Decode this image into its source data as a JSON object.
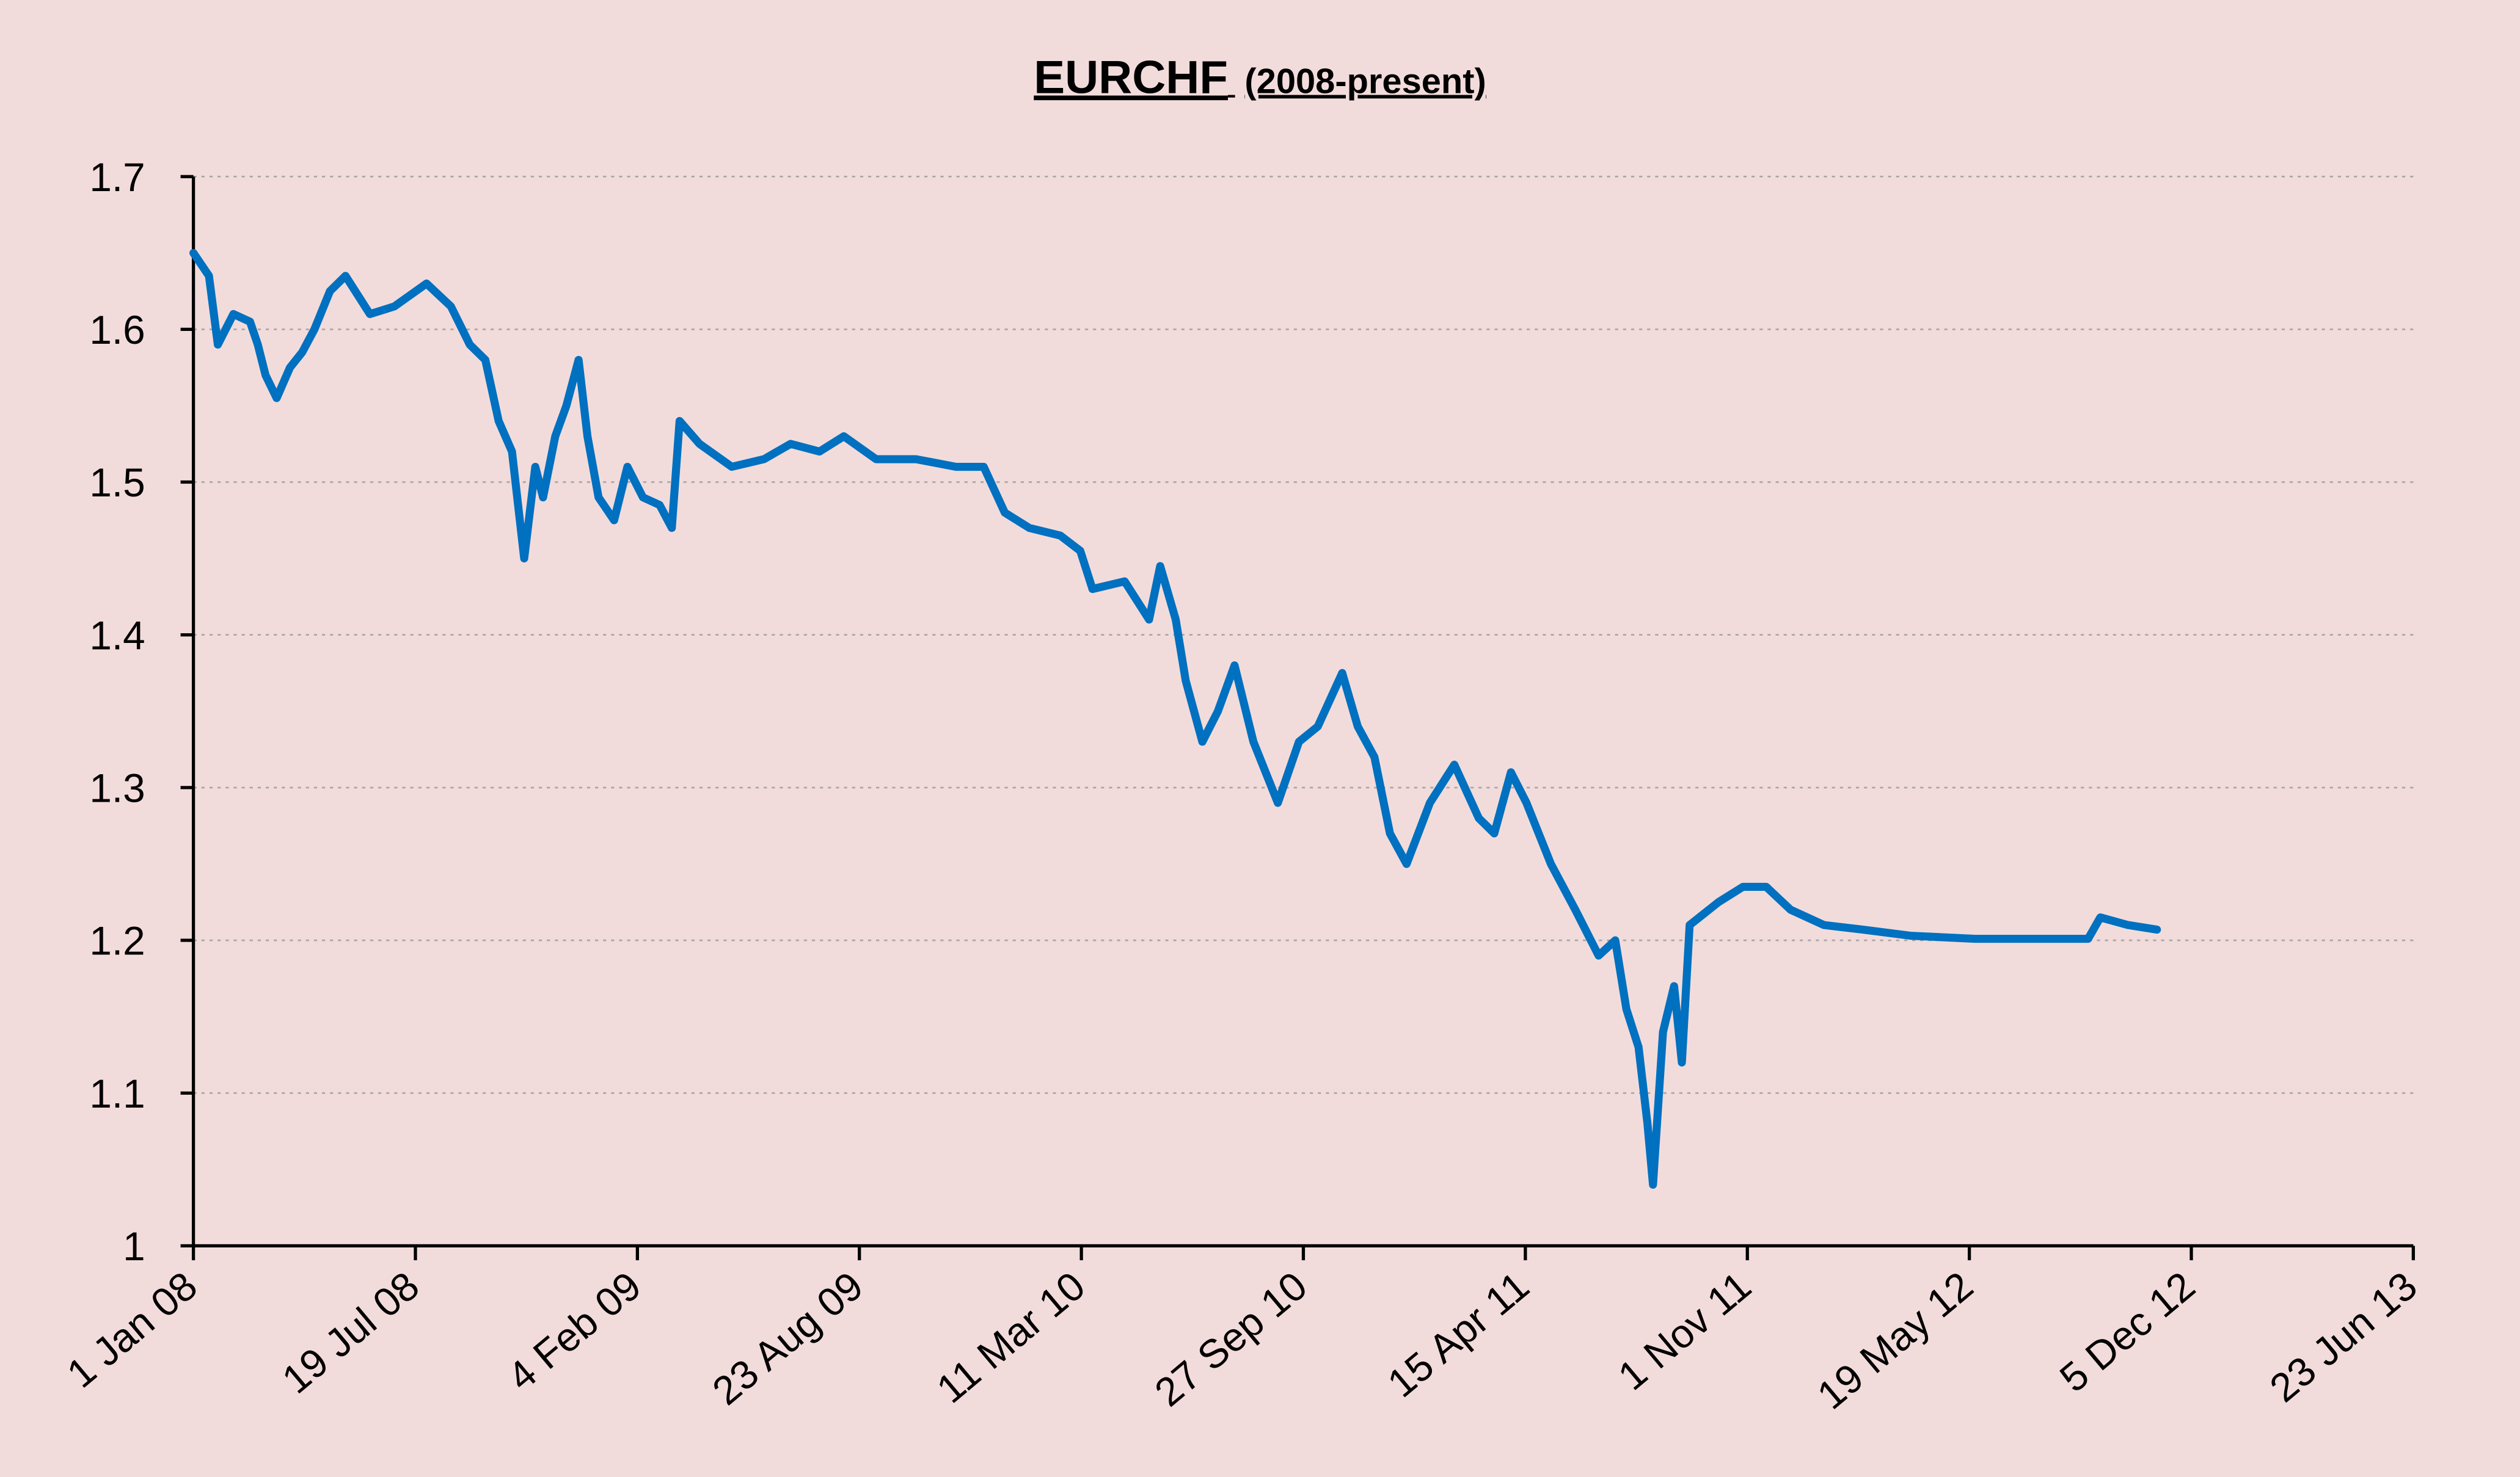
{
  "chart_data": {
    "type": "line",
    "title": "EURCHF",
    "subtitle": "(2008-present)",
    "color": "#0070c0",
    "grid": true,
    "x": [
      "2008-01-01",
      "2008-01-15",
      "2008-01-23",
      "2008-02-06",
      "2008-02-21",
      "2008-02-28",
      "2008-03-06",
      "2008-03-16",
      "2008-03-28",
      "2008-04-08",
      "2008-04-19",
      "2008-05-03",
      "2008-05-17",
      "2008-06-08",
      "2008-06-30",
      "2008-07-29",
      "2008-08-20",
      "2008-09-06",
      "2008-09-20",
      "2008-10-02",
      "2008-10-14",
      "2008-10-25",
      "2008-11-04",
      "2008-11-11",
      "2008-11-22",
      "2008-12-02",
      "2008-12-13",
      "2008-12-21",
      "2008-12-31",
      "2009-01-14",
      "2009-01-26",
      "2009-02-09",
      "2009-02-24",
      "2009-03-07",
      "2009-03-14",
      "2009-04-01",
      "2009-04-30",
      "2009-05-29",
      "2009-06-22",
      "2009-07-18",
      "2009-08-09",
      "2009-09-07",
      "2009-10-13",
      "2009-11-18",
      "2009-12-13",
      "2010-01-01",
      "2010-01-23",
      "2010-02-20",
      "2010-03-10",
      "2010-03-21",
      "2010-04-19",
      "2010-05-11",
      "2010-05-21",
      "2010-06-04",
      "2010-06-13",
      "2010-06-28",
      "2010-07-12",
      "2010-07-27",
      "2010-08-13",
      "2010-09-04",
      "2010-09-23",
      "2010-10-10",
      "2010-11-01",
      "2010-11-15",
      "2010-11-30",
      "2010-12-14",
      "2010-12-29",
      "2011-01-19",
      "2011-02-10",
      "2011-03-04",
      "2011-03-18",
      "2011-04-02",
      "2011-04-16",
      "2011-05-08",
      "2011-05-30",
      "2011-06-20",
      "2011-07-05",
      "2011-07-15",
      "2011-07-26",
      "2011-08-03",
      "2011-08-08",
      "2011-08-17",
      "2011-08-27",
      "2011-09-03",
      "2011-09-10",
      "2011-10-06",
      "2011-10-28",
      "2011-11-18",
      "2011-12-10",
      "2012-01-09",
      "2012-02-13",
      "2012-03-27",
      "2012-05-24",
      "2012-07-21",
      "2012-09-03",
      "2012-09-14",
      "2012-10-09",
      "2012-11-04"
    ],
    "values": [
      1.65,
      1.635,
      1.59,
      1.61,
      1.605,
      1.59,
      1.57,
      1.555,
      1.575,
      1.585,
      1.6,
      1.625,
      1.635,
      1.61,
      1.615,
      1.63,
      1.615,
      1.59,
      1.58,
      1.54,
      1.52,
      1.45,
      1.51,
      1.49,
      1.53,
      1.55,
      1.58,
      1.53,
      1.49,
      1.475,
      1.51,
      1.49,
      1.485,
      1.47,
      1.54,
      1.525,
      1.51,
      1.515,
      1.525,
      1.52,
      1.53,
      1.515,
      1.515,
      1.51,
      1.51,
      1.48,
      1.47,
      1.465,
      1.455,
      1.43,
      1.435,
      1.41,
      1.445,
      1.41,
      1.37,
      1.33,
      1.35,
      1.38,
      1.33,
      1.29,
      1.33,
      1.34,
      1.375,
      1.34,
      1.32,
      1.27,
      1.25,
      1.29,
      1.315,
      1.28,
      1.27,
      1.31,
      1.29,
      1.25,
      1.22,
      1.19,
      1.2,
      1.155,
      1.13,
      1.08,
      1.04,
      1.14,
      1.17,
      1.12,
      1.21,
      1.225,
      1.235,
      1.235,
      1.22,
      1.21,
      1.207,
      1.203,
      1.201,
      1.201,
      1.201,
      1.215,
      1.21,
      1.207
    ],
    "xlim": [
      "2008-01-01",
      "2013-06-23"
    ],
    "xticks": [
      {
        "value": "2008-01-01",
        "label": "1 Jan 08"
      },
      {
        "value": "2008-07-19",
        "label": "19 Jul 08"
      },
      {
        "value": "2009-02-04",
        "label": "4 Feb 09"
      },
      {
        "value": "2009-08-23",
        "label": "23 Aug 09"
      },
      {
        "value": "2010-03-11",
        "label": "11 Mar 10"
      },
      {
        "value": "2010-09-27",
        "label": "27 Sep 10"
      },
      {
        "value": "2011-04-15",
        "label": "15 Apr 11"
      },
      {
        "value": "2011-11-01",
        "label": "1 Nov 11"
      },
      {
        "value": "2012-05-19",
        "label": "19 May 12"
      },
      {
        "value": "2012-12-05",
        "label": "5 Dec 12"
      },
      {
        "value": "2013-06-23",
        "label": "23 Jun 13"
      }
    ],
    "ylim": [
      1,
      1.7
    ],
    "yticks": [
      1,
      1.1,
      1.2,
      1.3,
      1.4,
      1.5,
      1.6,
      1.7
    ]
  }
}
